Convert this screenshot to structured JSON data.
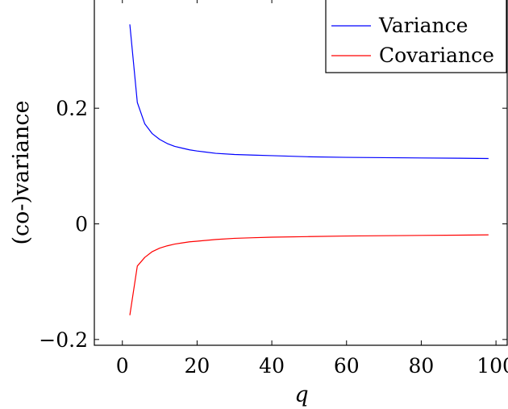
{
  "chart_data": {
    "type": "line",
    "xlabel": "q",
    "ylabel": "(co-)variance",
    "xlim": [
      -7.5,
      103
    ],
    "ylim": [
      -0.21,
      0.39
    ],
    "xticks": [
      0,
      20,
      40,
      60,
      80,
      100
    ],
    "xtick_labels": [
      "0",
      "20",
      "40",
      "60",
      "80",
      "100"
    ],
    "yticks": [
      -0.2,
      0,
      0.2
    ],
    "ytick_labels": [
      "−0.2",
      "0",
      "0.2"
    ],
    "grid": false,
    "legend_position": "top-right",
    "series": [
      {
        "name": "Variance",
        "color": "#0000ff",
        "x": [
          2,
          4,
          6,
          8,
          10,
          12,
          14,
          16,
          18,
          20,
          25,
          30,
          35,
          40,
          50,
          60,
          70,
          80,
          90,
          98
        ],
        "y": [
          0.345,
          0.21,
          0.173,
          0.156,
          0.146,
          0.139,
          0.134,
          0.131,
          0.128,
          0.126,
          0.122,
          0.12,
          0.119,
          0.118,
          0.116,
          0.115,
          0.1145,
          0.114,
          0.1135,
          0.113
        ]
      },
      {
        "name": "Covariance",
        "color": "#ff0000",
        "x": [
          2,
          4,
          6,
          8,
          10,
          12,
          14,
          16,
          18,
          20,
          25,
          30,
          35,
          40,
          50,
          60,
          70,
          80,
          90,
          98
        ],
        "y": [
          -0.158,
          -0.073,
          -0.058,
          -0.048,
          -0.042,
          -0.038,
          -0.035,
          -0.033,
          -0.031,
          -0.03,
          -0.027,
          -0.025,
          -0.024,
          -0.023,
          -0.022,
          -0.021,
          -0.0205,
          -0.02,
          -0.0195,
          -0.019
        ]
      }
    ]
  }
}
